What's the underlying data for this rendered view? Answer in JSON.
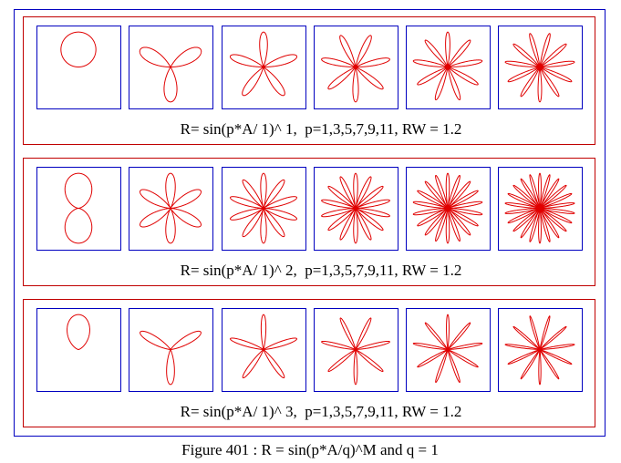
{
  "figure": {
    "caption": "Figure 401 : R = sin(p*A/q)^M and q = 1"
  },
  "panels": [
    {
      "caption": "R= sin(p*A/ 1)^ 1,  p=1,3,5,7,9,11, RW = 1.2",
      "M": 1,
      "q": 1,
      "RW": 1.2,
      "p": [
        1,
        3,
        5,
        7,
        9,
        11
      ]
    },
    {
      "caption": "R= sin(p*A/ 1)^ 2,  p=1,3,5,7,9,11, RW = 1.2",
      "M": 2,
      "q": 1,
      "RW": 1.2,
      "p": [
        1,
        3,
        5,
        7,
        9,
        11
      ]
    },
    {
      "caption": "R= sin(p*A/ 1)^ 3,  p=1,3,5,7,9,11, RW = 1.2",
      "M": 3,
      "q": 1,
      "RW": 1.2,
      "p": [
        1,
        3,
        5,
        7,
        9,
        11
      ]
    }
  ]
}
